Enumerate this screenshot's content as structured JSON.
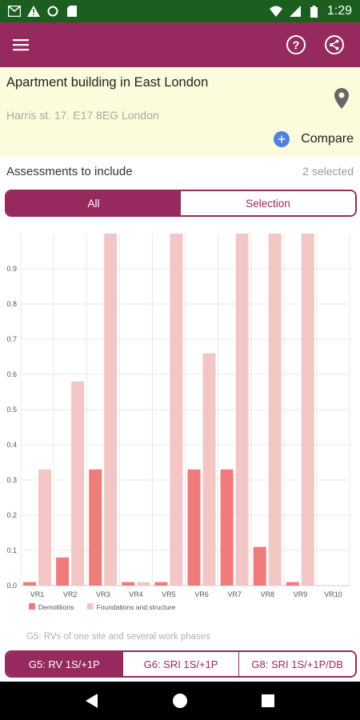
{
  "status": {
    "time": "1:29"
  },
  "header": {
    "title": "Apartment building in East London",
    "address": "Harris st. 17. E17 8EG London",
    "compare_label": "Compare"
  },
  "assessments": {
    "label": "Assessments to include",
    "selected": "2 selected"
  },
  "filter_tabs": {
    "all": "All",
    "selection": "Selection"
  },
  "caption": "G5: RVs of one site and several work phases",
  "bottom_tabs": {
    "g5": "G5: RV 1S/+1P",
    "g6": "G6: SRI 1S/+1P",
    "g8": "G8: SRI 1S/+1P/DB"
  },
  "colors": {
    "primary": "#962a5e",
    "demolitions": "#ef7b7b",
    "foundations": "#f3c6c6",
    "status_bar": "#1b5e20"
  },
  "chart_data": {
    "type": "bar",
    "categories": [
      "VR1",
      "VR2",
      "VR3",
      "VR4",
      "VR5",
      "VR6",
      "VR7",
      "VR8",
      "VR9",
      "VR10"
    ],
    "series": [
      {
        "name": "Demolitions",
        "values": [
          0.01,
          0.08,
          0.33,
          0.01,
          0.01,
          0.33,
          0.33,
          0.11,
          0.01,
          0
        ]
      },
      {
        "name": "Foundations and structure",
        "values": [
          0.33,
          0.58,
          1.0,
          0.01,
          1.0,
          0.66,
          1.0,
          1.0,
          1.0,
          0
        ]
      }
    ],
    "ylim": [
      0,
      1.0
    ],
    "yticks": [
      "0.0",
      "0.1",
      "0.2",
      "0.3",
      "0.4",
      "0.5",
      "0.6",
      "0.7",
      "0.8",
      "0.9"
    ],
    "grid": true,
    "legend": "bottom"
  }
}
